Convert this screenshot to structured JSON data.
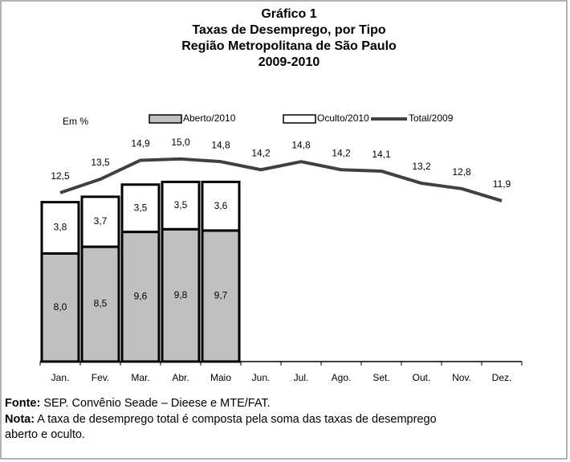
{
  "chart_data": {
    "type": "bar",
    "stacked": true,
    "title": [
      "Gráfico 1",
      "Taxas de Desemprego, por Tipo",
      "Região Metropolitana de São Paulo",
      "2009-2010"
    ],
    "y_label": "Em %",
    "categories": [
      "Jan.",
      "Fev.",
      "Mar.",
      "Abr.",
      "Maio",
      "Jun.",
      "Jul.",
      "Ago.",
      "Set.",
      "Out.",
      "Nov.",
      "Dez."
    ],
    "series": [
      {
        "name": "Aberto/2010",
        "type": "bar",
        "color": "#c0c0c0",
        "values": [
          8.0,
          8.5,
          9.6,
          9.8,
          9.7,
          null,
          null,
          null,
          null,
          null,
          null,
          null
        ],
        "value_labels": [
          "8,0",
          "8,5",
          "9,6",
          "9,8",
          "9,7",
          null,
          null,
          null,
          null,
          null,
          null,
          null
        ]
      },
      {
        "name": "Oculto/2010",
        "type": "bar",
        "color": "#ffffff",
        "values": [
          3.8,
          3.7,
          3.5,
          3.5,
          3.6,
          null,
          null,
          null,
          null,
          null,
          null,
          null
        ],
        "value_labels": [
          "3,8",
          "3,7",
          "3,5",
          "3,5",
          "3,6",
          null,
          null,
          null,
          null,
          null,
          null,
          null
        ]
      },
      {
        "name": "Total/2009",
        "type": "line",
        "color": "#404040",
        "values": [
          12.5,
          13.5,
          14.9,
          15.0,
          14.8,
          14.2,
          14.8,
          14.2,
          14.1,
          13.2,
          12.8,
          11.9
        ],
        "value_labels": [
          "12,5",
          "13,5",
          "14,9",
          "15,0",
          "14,8",
          "14,2",
          "14,8",
          "14,2",
          "14,1",
          "13,2",
          "12,8",
          "11,9"
        ]
      }
    ],
    "ylim": [
      0,
      16
    ],
    "grid": false,
    "source": {
      "label": "Fonte:",
      "text": "SEP. Convênio Seade – Dieese e MTE/FAT."
    },
    "note": {
      "label": "Nota:",
      "text": [
        "A taxa de desemprego total é composta pela soma das taxas de desemprego",
        "aberto e oculto."
      ]
    }
  }
}
